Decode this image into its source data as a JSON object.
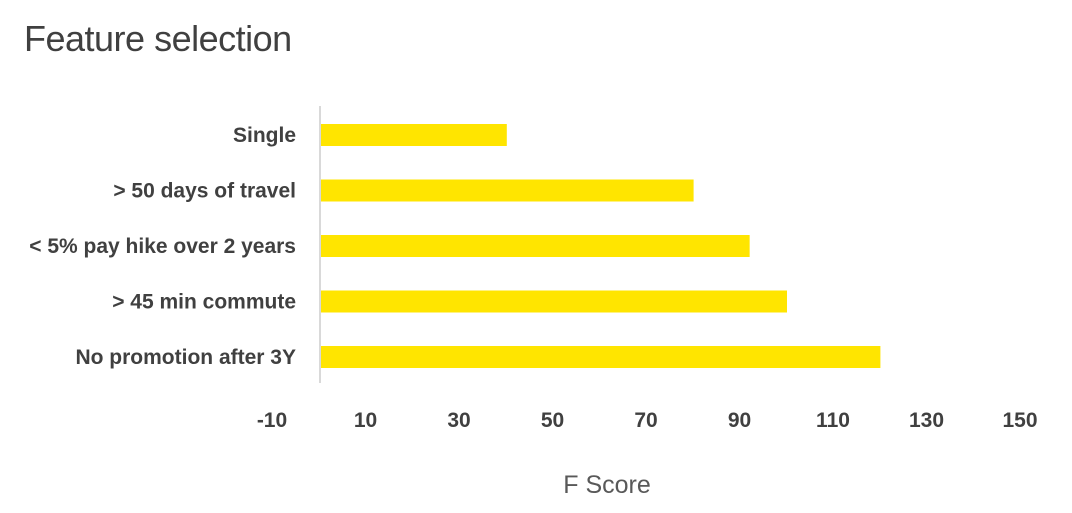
{
  "colors": {
    "bar": "#FFE500",
    "axis_line": "#D9D9D9",
    "text": "#404040"
  },
  "chart_data": {
    "type": "bar",
    "orientation": "horizontal",
    "title": "Feature selection",
    "xlabel": "F Score",
    "ylabel": "",
    "categories": [
      "Single",
      "> 50 days of travel",
      "< 5% pay hike over 2 years",
      "> 45 min commute",
      "No promotion after 3Y"
    ],
    "values": [
      40,
      80,
      92,
      100,
      120
    ],
    "xlim": [
      -10,
      150
    ],
    "xticks": [
      "-10",
      "10",
      "30",
      "50",
      "70",
      "90",
      "110",
      "130",
      "150"
    ],
    "grid": false,
    "legend": "none"
  }
}
